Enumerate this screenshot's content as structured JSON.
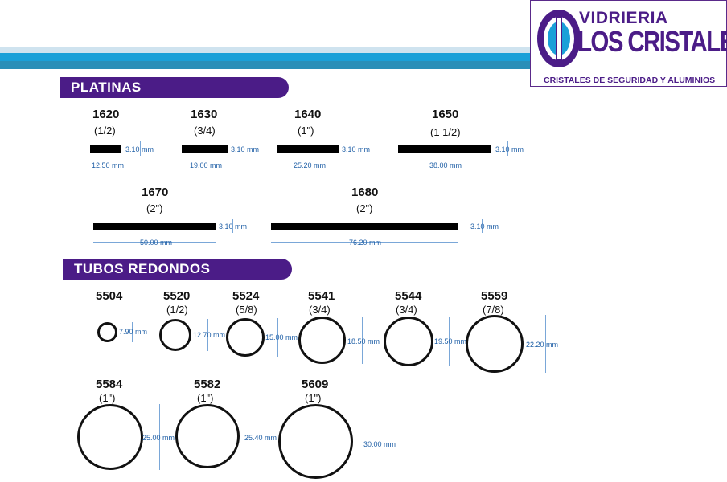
{
  "brand": {
    "line1": "VIDRIERIA",
    "line2": "LOS CRISTALES",
    "tagline": "CRISTALES DE SEGURIDAD Y ALUMINIOS",
    "color_purple": "#4b1c87",
    "color_cyan": "#1aa0d8"
  },
  "sections": {
    "platinas": "PLATINAS",
    "tubos": "TUBOS REDONDOS"
  },
  "platinas": [
    {
      "code": "1620",
      "size": "(1/2)",
      "thickness": "3.10 mm",
      "width": "12.50 mm"
    },
    {
      "code": "1630",
      "size": "(3/4)",
      "thickness": "3.10 mm",
      "width": "19.00 mm"
    },
    {
      "code": "1640",
      "size": "(1\")",
      "thickness": "3.10 mm",
      "width": "25.20 mm"
    },
    {
      "code": "1650",
      "size": "(1 1/2)",
      "thickness": "3.10 mm",
      "width": "38.00 mm"
    },
    {
      "code": "1670",
      "size": "(2\")",
      "thickness": "3.10 mm",
      "width": "50.00 mm"
    },
    {
      "code": "1680",
      "size": "(2\")",
      "thickness": "3.10 mm",
      "width": "76.20 mm"
    }
  ],
  "tubos": [
    {
      "code": "5504",
      "size": "",
      "diameter": "7.90 mm"
    },
    {
      "code": "5520",
      "size": "(1/2)",
      "diameter": "12.70 mm"
    },
    {
      "code": "5524",
      "size": "(5/8)",
      "diameter": "15.00 mm"
    },
    {
      "code": "5541",
      "size": "(3/4)",
      "diameter": "18.50 mm"
    },
    {
      "code": "5544",
      "size": "(3/4)",
      "diameter": "19.50 mm"
    },
    {
      "code": "5559",
      "size": "(7/8)",
      "diameter": "22.20 mm"
    },
    {
      "code": "5584",
      "size": "(1\")",
      "diameter": "25.00 mm"
    },
    {
      "code": "5582",
      "size": "(1\")",
      "diameter": "25.40 mm"
    },
    {
      "code": "5609",
      "size": "(1\")",
      "diameter": "30.00 mm"
    }
  ]
}
